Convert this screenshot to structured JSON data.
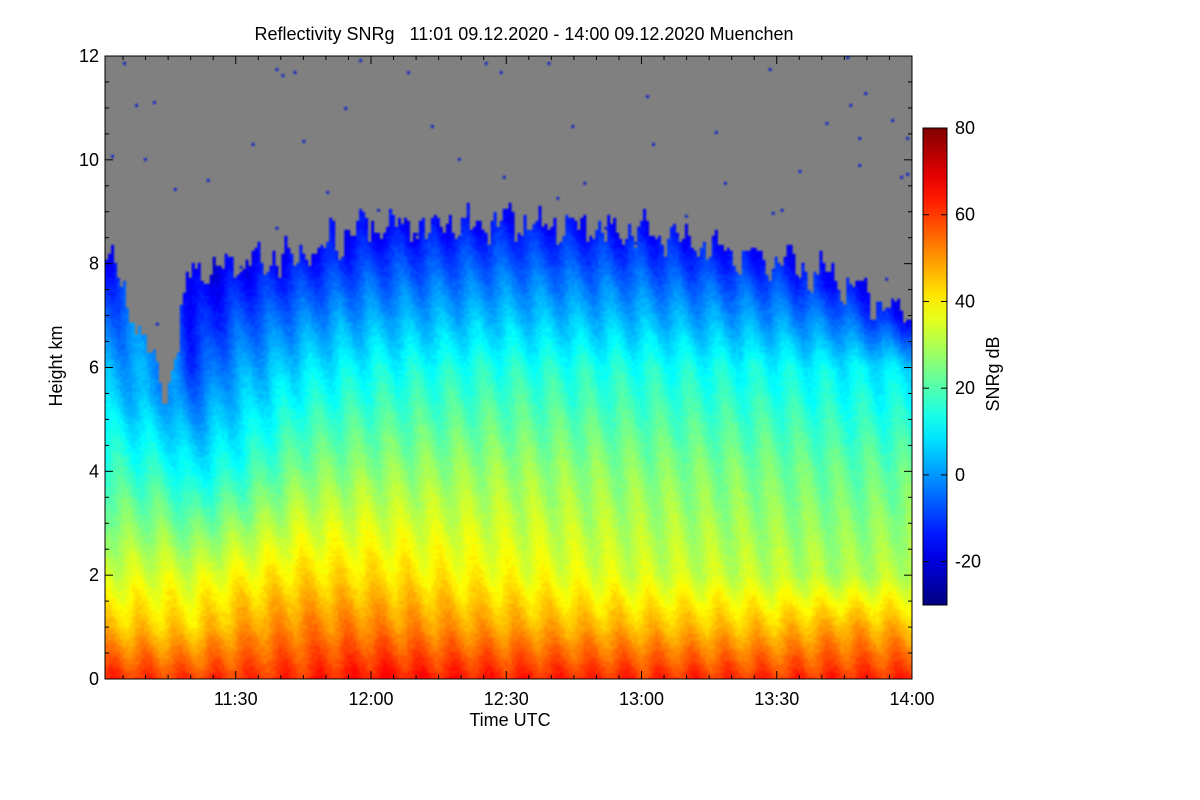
{
  "chart_data": {
    "type": "heatmap",
    "title": "Reflectivity SNRg   11:01 09.12.2020 - 14:00 09.12.2020 Muenchen",
    "xlabel": "Time UTC",
    "ylabel": "Height km",
    "colorbar_label": "SNRg dB",
    "x_range": [
      "11:01",
      "14:00"
    ],
    "x_ticks": [
      "11:30",
      "12:00",
      "12:30",
      "13:00",
      "13:30",
      "14:00"
    ],
    "y_range": [
      0,
      12
    ],
    "y_ticks": [
      0,
      2,
      4,
      6,
      8,
      10,
      12
    ],
    "colorbar_range": [
      -30,
      80
    ],
    "colorbar_ticks": [
      -20,
      0,
      20,
      40,
      60,
      80
    ],
    "colormap": "jet",
    "no_signal_color": "#808080",
    "profiles": [
      {
        "time": "11:01",
        "top_km": 8.3,
        "snr_dB": [
          [
            0,
            62
          ],
          [
            1,
            45
          ],
          [
            2,
            34
          ],
          [
            4,
            18
          ],
          [
            6,
            2
          ],
          [
            8.3,
            -18
          ]
        ]
      },
      {
        "time": "11:15",
        "top_km": 5.5,
        "snr_dB": [
          [
            0,
            60
          ],
          [
            1,
            44
          ],
          [
            2,
            35
          ],
          [
            4,
            15
          ],
          [
            5.5,
            0
          ]
        ]
      },
      {
        "time": "11:20",
        "top_km": 7.9,
        "snr_dB": [
          [
            0,
            60
          ],
          [
            1,
            43
          ],
          [
            2,
            34
          ],
          [
            4,
            10
          ],
          [
            6,
            -10
          ],
          [
            7.9,
            -20
          ]
        ]
      },
      {
        "time": "11:30",
        "top_km": 8.0,
        "snr_dB": [
          [
            0,
            61
          ],
          [
            1,
            48
          ],
          [
            2,
            38
          ],
          [
            4,
            15
          ],
          [
            6,
            0
          ],
          [
            8.0,
            -18
          ]
        ]
      },
      {
        "time": "11:45",
        "top_km": 8.2,
        "snr_dB": [
          [
            0,
            62
          ],
          [
            1,
            52
          ],
          [
            2,
            42
          ],
          [
            4,
            25
          ],
          [
            6,
            8
          ],
          [
            8.2,
            -16
          ]
        ]
      },
      {
        "time": "12:00",
        "top_km": 8.7,
        "snr_dB": [
          [
            0,
            65
          ],
          [
            1,
            52
          ],
          [
            2,
            42
          ],
          [
            4,
            27
          ],
          [
            6,
            12
          ],
          [
            8.7,
            -17
          ]
        ]
      },
      {
        "time": "12:30",
        "top_km": 8.8,
        "snr_dB": [
          [
            0,
            63
          ],
          [
            1,
            48
          ],
          [
            2,
            38
          ],
          [
            4,
            28
          ],
          [
            6,
            15
          ],
          [
            8.8,
            -15
          ]
        ]
      },
      {
        "time": "13:00",
        "top_km": 8.6,
        "snr_dB": [
          [
            0,
            62
          ],
          [
            1,
            46
          ],
          [
            2,
            34
          ],
          [
            4,
            26
          ],
          [
            6,
            14
          ],
          [
            8.6,
            -15
          ]
        ]
      },
      {
        "time": "13:30",
        "top_km": 8.1,
        "snr_dB": [
          [
            0,
            61
          ],
          [
            1,
            45
          ],
          [
            2,
            32
          ],
          [
            4,
            24
          ],
          [
            6,
            12
          ],
          [
            8.1,
            -15
          ]
        ]
      },
      {
        "time": "13:45",
        "top_km": 7.6,
        "snr_dB": [
          [
            0,
            62
          ],
          [
            1,
            48
          ],
          [
            2,
            30
          ],
          [
            4,
            22
          ],
          [
            6,
            10
          ],
          [
            7.6,
            -15
          ]
        ]
      },
      {
        "time": "14:00",
        "top_km": 7.0,
        "snr_dB": [
          [
            0,
            62
          ],
          [
            1,
            46
          ],
          [
            2,
            32
          ],
          [
            4,
            22
          ],
          [
            6,
            8
          ],
          [
            7.0,
            -18
          ]
        ]
      }
    ]
  }
}
